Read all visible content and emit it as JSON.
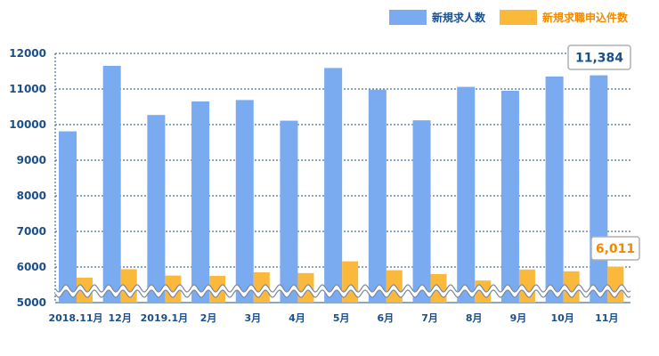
{
  "chart_data": {
    "type": "bar",
    "categories": [
      "2018.11月",
      "12月",
      "2019.1月",
      "2月",
      "3月",
      "4月",
      "5月",
      "6月",
      "7月",
      "8月",
      "9月",
      "10月",
      "11月"
    ],
    "series": [
      {
        "name": "新規求人数",
        "color": "#7aaaf0",
        "values": [
          9810,
          11650,
          10270,
          10650,
          10690,
          10110,
          11590,
          10980,
          10120,
          11060,
          10950,
          11350,
          11384
        ]
      },
      {
        "name": "新規求職申込件数",
        "color": "#fbb93c",
        "values": [
          5700,
          5940,
          5760,
          5750,
          5850,
          5830,
          6160,
          5910,
          5800,
          5620,
          5930,
          5880,
          6011
        ]
      }
    ],
    "ylim": [
      5000,
      12000
    ],
    "yticks": [
      "5000",
      "6000",
      "7000",
      "8000",
      "9000",
      "10000",
      "11000",
      "12000"
    ],
    "grid": true,
    "legend": "top-right",
    "axis_break": true,
    "annotations": [
      {
        "series": 0,
        "index": 12,
        "text": "11,384",
        "color": "#1a4f8a"
      },
      {
        "series": 1,
        "index": 12,
        "text": "6,011",
        "color": "#f08a00"
      }
    ]
  }
}
